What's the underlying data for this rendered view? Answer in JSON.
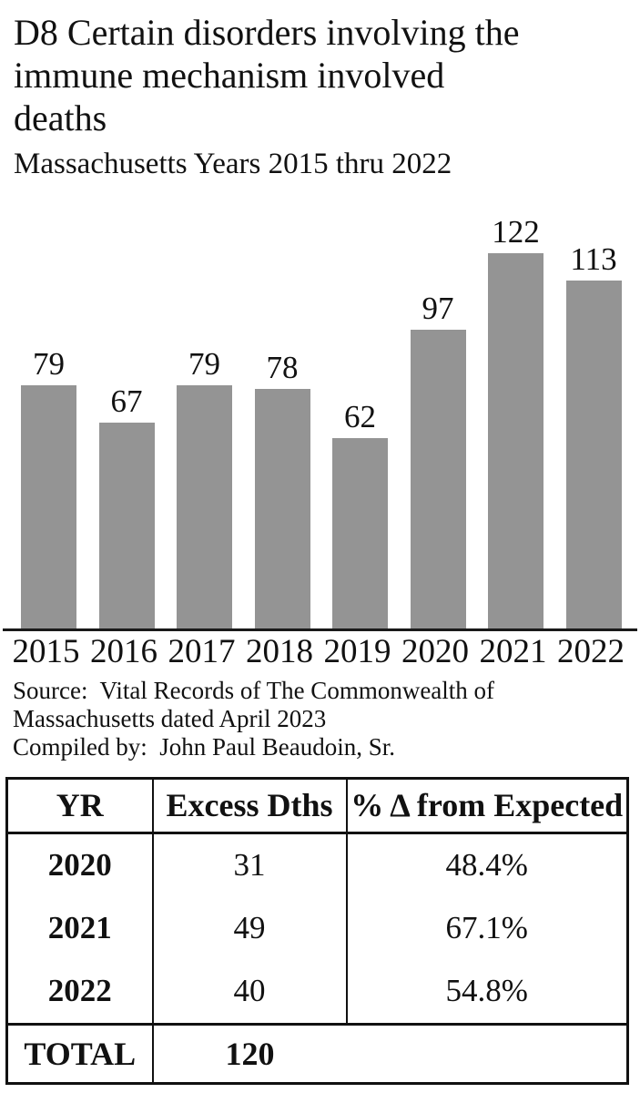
{
  "page": {
    "background": "#ffffff",
    "text_color": "#111111"
  },
  "header": {
    "title_lines": [
      "D8 Certain disorders involving the",
      "immune mechanism involved",
      "deaths"
    ],
    "subtitle": "Massachusetts Years 2015 thru 2022"
  },
  "chart_data": {
    "type": "bar",
    "title": "D8 Certain disorders involving the immune mechanism involved deaths",
    "subtitle": "Massachusetts Years 2015 thru 2022",
    "categories": [
      "2015",
      "2016",
      "2017",
      "2018",
      "2019",
      "2020",
      "2021",
      "2022"
    ],
    "values": [
      79,
      67,
      79,
      78,
      62,
      97,
      122,
      113
    ],
    "value_labels_shown": true,
    "bar_color": "#949494",
    "axis_color": "#1a1a1a",
    "xlabel": "",
    "ylabel": "",
    "ylim": [
      0,
      122
    ],
    "grid": false,
    "legend": "none"
  },
  "source": {
    "lines": [
      "Source:  Vital Records of The Commonwealth of",
      "Massachusetts dated April 2023",
      "Compiled by:  John Paul Beaudoin, Sr."
    ]
  },
  "table": {
    "headers": [
      "YR",
      "Excess Dths",
      "% Δ from Expected"
    ],
    "rows": [
      {
        "yr": "2020",
        "excess": "31",
        "pct": "48.4%"
      },
      {
        "yr": "2021",
        "excess": "49",
        "pct": "67.1%"
      },
      {
        "yr": "2022",
        "excess": "40",
        "pct": "54.8%"
      }
    ],
    "total_label": "TOTAL",
    "total_value": "120"
  }
}
